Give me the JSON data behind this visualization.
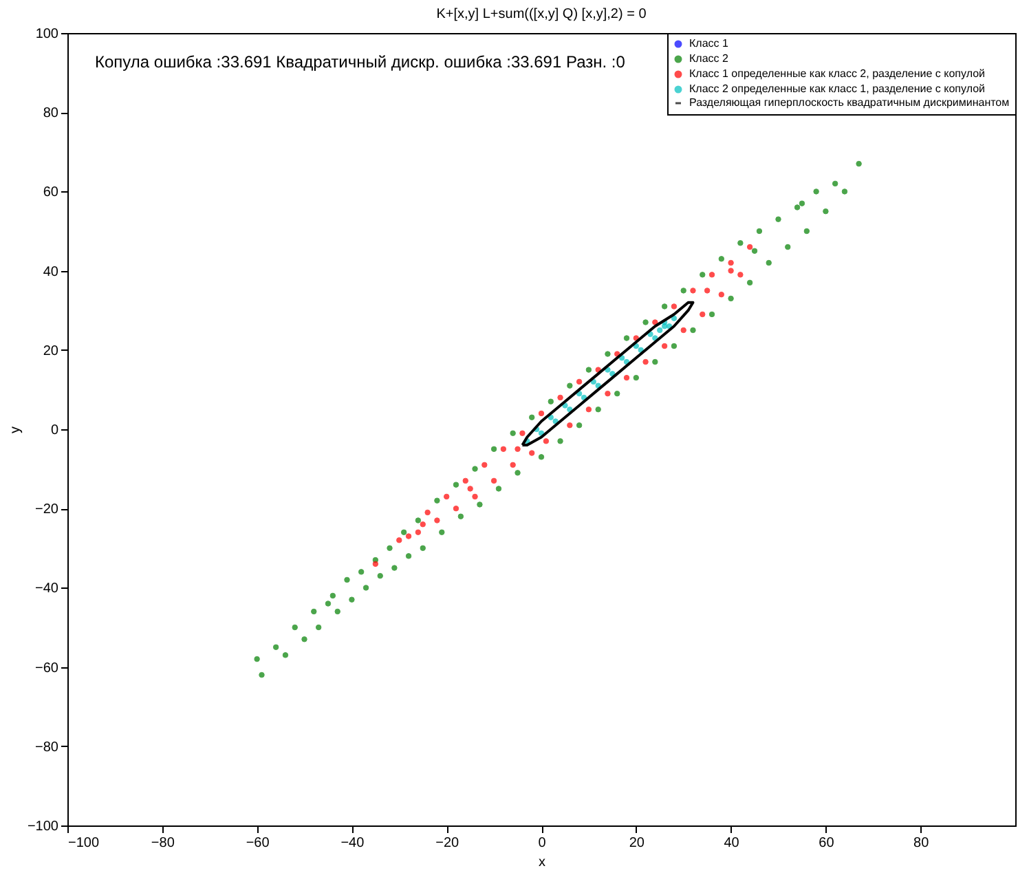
{
  "chart_data": {
    "type": "scatter",
    "title": "K+[x,y] L+sum(([x,y] Q) [x,y],2) = 0",
    "xlabel": "x",
    "ylabel": "y",
    "annotations": [
      "Копула ошибка :33.691  Квадратичный дискр. ошибка :33.691  Разн. :0"
    ],
    "xlim": [
      -100,
      100
    ],
    "ylim": [
      -100,
      100
    ],
    "xticks": [
      -100,
      -80,
      -60,
      -40,
      -20,
      0,
      20,
      40,
      60,
      80
    ],
    "yticks": [
      -100,
      -80,
      -60,
      -40,
      -20,
      0,
      20,
      40,
      60,
      80,
      100
    ],
    "grid": false,
    "legend": "top right",
    "marker": "circle",
    "series": [
      {
        "name": "Класс 1",
        "color": "#0000ff",
        "x": [
          null
        ],
        "values": [
          null
        ]
      },
      {
        "name": "Класс 2",
        "color": "#008000",
        "x": [
          -60,
          -59,
          -56,
          -54,
          -52,
          -50,
          -48,
          -47,
          -45,
          -43,
          -41,
          -40,
          -38,
          -37,
          -35,
          -34,
          -32,
          -31,
          -29,
          -28,
          -26,
          -25,
          -22,
          -21,
          -18,
          -17,
          -14,
          -13,
          -10,
          -9,
          -6,
          -5,
          -2,
          0,
          2,
          4,
          6,
          8,
          10,
          12,
          14,
          16,
          18,
          20,
          22,
          24,
          26,
          28,
          30,
          32,
          34,
          36,
          38,
          40,
          42,
          44,
          46,
          48,
          50,
          52,
          54,
          56,
          58,
          60,
          62,
          64,
          67,
          55,
          45,
          -44
        ],
        "values": [
          -58,
          -62,
          -55,
          -57,
          -50,
          -53,
          -46,
          -50,
          -44,
          -46,
          -38,
          -43,
          -36,
          -40,
          -33,
          -37,
          -30,
          -35,
          -26,
          -32,
          -23,
          -30,
          -18,
          -26,
          -14,
          -22,
          -10,
          -19,
          -5,
          -15,
          -1,
          -11,
          3,
          -7,
          7,
          -3,
          11,
          1,
          15,
          5,
          19,
          9,
          23,
          13,
          27,
          17,
          31,
          21,
          35,
          25,
          39,
          29,
          43,
          33,
          47,
          37,
          50,
          42,
          53,
          46,
          56,
          50,
          60,
          55,
          62,
          60,
          67,
          57,
          45,
          -42
        ]
      },
      {
        "name": "Класс 1 определенные как класс 2, разделение с копулой",
        "color": "#ff0000",
        "x": [
          -30,
          -28,
          -26,
          -24,
          -22,
          -20,
          -18,
          -16,
          -14,
          -12,
          -10,
          -8,
          -6,
          -4,
          -2,
          0,
          1,
          4,
          6,
          8,
          10,
          12,
          14,
          16,
          18,
          20,
          22,
          24,
          26,
          28,
          30,
          32,
          34,
          36,
          38,
          40,
          42,
          44,
          -25,
          -15,
          -5,
          35,
          40,
          -35
        ],
        "values": [
          -28,
          -27,
          -26,
          -21,
          -23,
          -17,
          -20,
          -13,
          -17,
          -9,
          -13,
          -5,
          -9,
          -1,
          -6,
          4,
          -3,
          8,
          1,
          12,
          5,
          15,
          9,
          19,
          13,
          23,
          17,
          27,
          21,
          31,
          25,
          35,
          29,
          39,
          34,
          42,
          39,
          46,
          -24,
          -15,
          -5,
          35,
          40,
          -34
        ]
      },
      {
        "name": "Класс 2 определенные как класс 1, разделение с копулой",
        "color": "#00c0c0",
        "x": [
          -3,
          -1,
          0,
          2,
          3,
          5,
          6,
          8,
          9,
          11,
          12,
          14,
          15,
          17,
          18,
          20,
          21,
          23,
          24,
          26,
          27,
          25,
          28,
          26
        ],
        "values": [
          -3,
          0,
          -1,
          3,
          2,
          6,
          5,
          9,
          8,
          12,
          11,
          15,
          14,
          18,
          17,
          21,
          20,
          24,
          23,
          27,
          26,
          25,
          28,
          26
        ]
      },
      {
        "name": "Разделяющая гиперплоскость квадратичным дискриминантом",
        "type": "line",
        "color": "#000000",
        "x": [
          null
        ],
        "values": [
          null
        ]
      }
    ]
  }
}
